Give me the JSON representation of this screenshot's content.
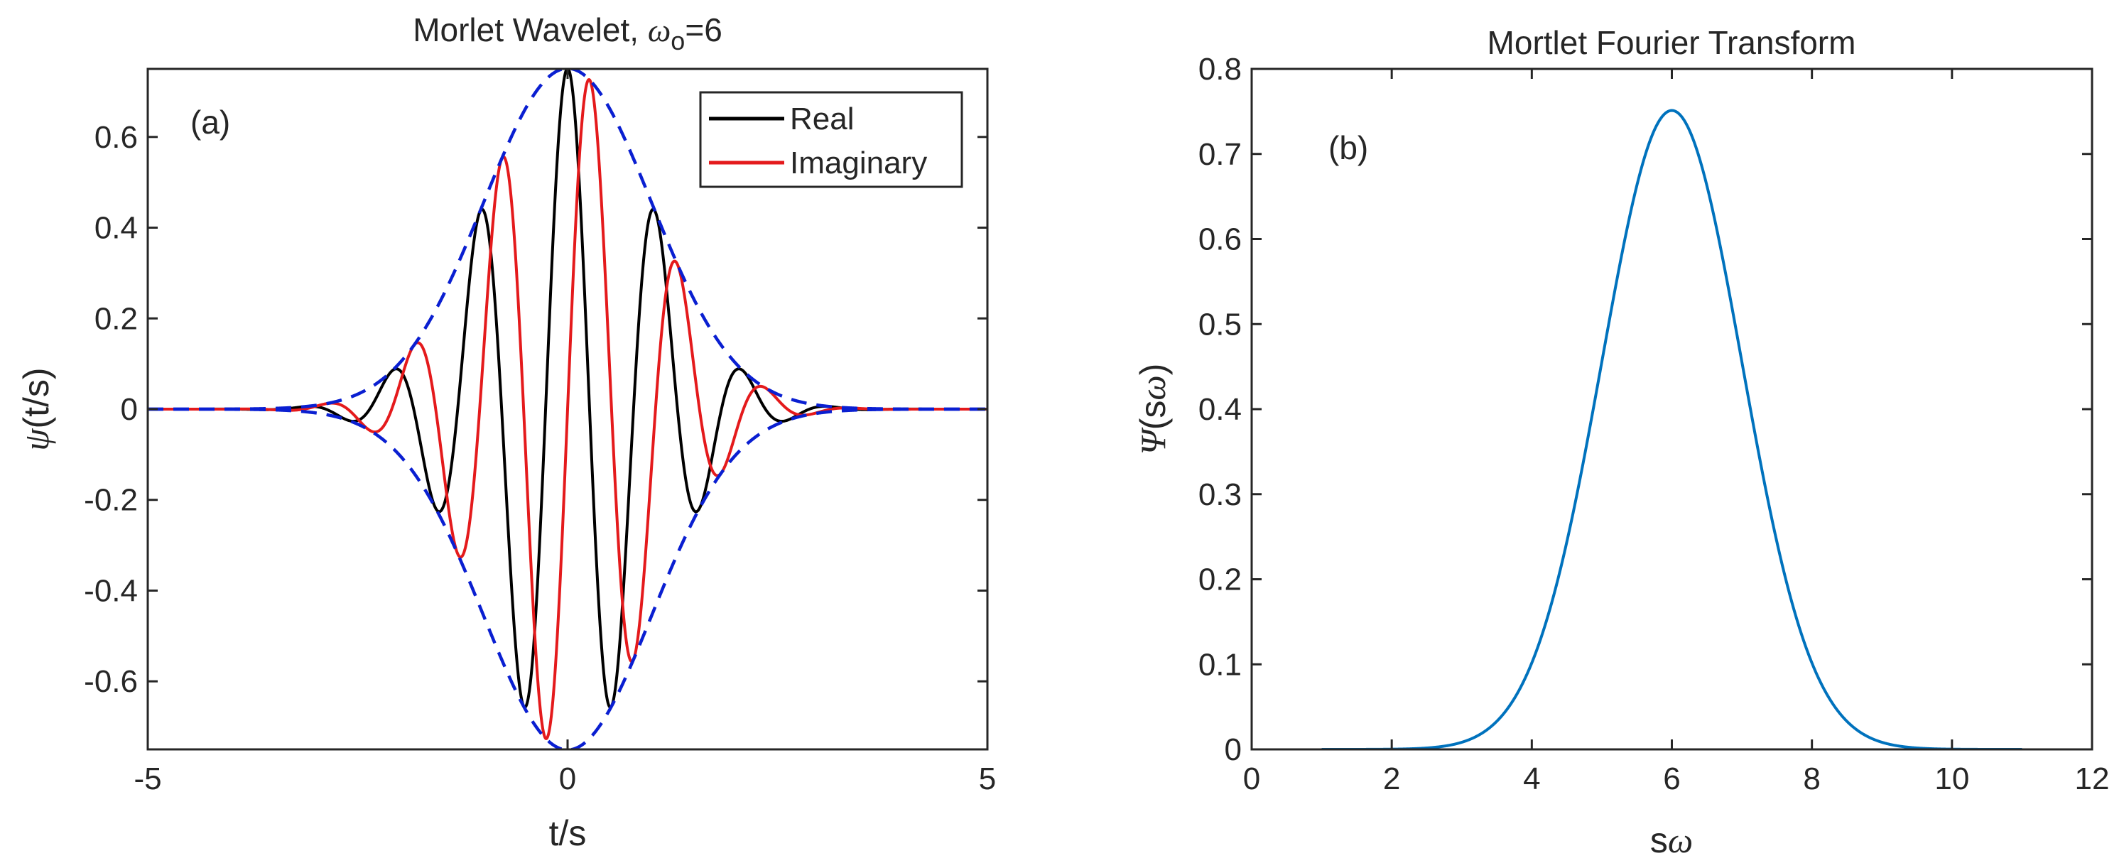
{
  "chart_data": [
    {
      "type": "line",
      "panel": "a",
      "title_text": "Morlet Wavelet, ",
      "title_symbol": "ω",
      "title_subscript": "o",
      "title_suffix": "=6",
      "annotation": "(a)",
      "xlabel": "t/s",
      "ylabel_symbol": "ψ",
      "ylabel_text": "(t/s)",
      "xlim": [
        -5,
        5
      ],
      "ylim": [
        -0.75,
        0.75
      ],
      "x_ticks": [
        -5,
        0,
        5
      ],
      "y_ticks": [
        -0.6,
        -0.4,
        -0.2,
        0,
        0.2,
        0.4,
        0.6
      ],
      "x_tick_labels": [
        "-5",
        "0",
        "5"
      ],
      "y_tick_labels": [
        "-0.6",
        "-0.4",
        "-0.2",
        "0",
        "0.2",
        "0.4",
        "0.6"
      ],
      "omega0": 6,
      "amplitude": 0.7511,
      "series": [
        {
          "name": "Real",
          "color": "#000000",
          "function": "0.7511*cos(6t)*exp(-t^2/2)",
          "x_range": [
            -5,
            5
          ],
          "in_legend": true
        },
        {
          "name": "Imaginary",
          "color": "#e41a1c",
          "function": "0.7511*sin(6t)*exp(-t^2/2)",
          "x_range": [
            -5,
            5
          ],
          "in_legend": true
        },
        {
          "name": "Envelope (+)",
          "color": "#0a1fd1",
          "function": "0.7511*exp(-t^2/2)",
          "x_range": [
            -5,
            5
          ],
          "dashed": true,
          "in_legend": false
        },
        {
          "name": "Envelope (-)",
          "color": "#0a1fd1",
          "function": "-0.7511*exp(-t^2/2)",
          "x_range": [
            -5,
            5
          ],
          "dashed": true,
          "in_legend": false
        }
      ],
      "legend_position": "top-right",
      "legend_entries": [
        "Real",
        "Imaginary"
      ],
      "grid": false
    },
    {
      "type": "line",
      "panel": "b",
      "title_text": "Mortlet Fourier Transform",
      "annotation": "(b)",
      "xlabel_text": "s",
      "xlabel_symbol": "ω",
      "ylabel_symbol": "Ψ",
      "ylabel_text_open": "(s",
      "ylabel_text_symbol": "ω",
      "ylabel_text_close": ")",
      "xlim": [
        0,
        12
      ],
      "ylim": [
        0,
        0.8
      ],
      "x_ticks": [
        0,
        2,
        4,
        6,
        8,
        10,
        12
      ],
      "y_ticks": [
        0,
        0.1,
        0.2,
        0.3,
        0.4,
        0.5,
        0.6,
        0.7,
        0.8
      ],
      "x_tick_labels": [
        "0",
        "2",
        "4",
        "6",
        "8",
        "10",
        "12"
      ],
      "y_tick_labels": [
        "0",
        "0.1",
        "0.2",
        "0.3",
        "0.4",
        "0.5",
        "0.6",
        "0.7",
        "0.8"
      ],
      "series": [
        {
          "name": "Fourier transform",
          "color": "#0072bd",
          "function": "0.7511*exp(-(sw-6)^2/2)",
          "x_range": [
            1,
            11
          ],
          "peak": [
            6,
            0.75
          ]
        }
      ],
      "grid": false
    }
  ]
}
